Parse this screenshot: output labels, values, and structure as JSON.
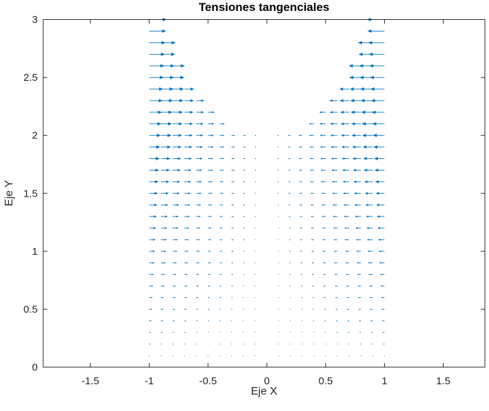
{
  "chart_data": {
    "type": "quiver",
    "title": "Tensiones tangenciales",
    "xlabel": "Eje X",
    "ylabel": "Eje Y",
    "x_tick_values": [
      -1.5,
      -1,
      -0.5,
      0,
      0.5,
      1,
      1.5
    ],
    "x_tick_labels": [
      "-1.5",
      "-1",
      "-0.5",
      "0",
      "0.5",
      "1",
      "1.5"
    ],
    "y_tick_values": [
      0,
      0.5,
      1,
      1.5,
      2,
      2.5,
      3
    ],
    "y_tick_labels": [
      "0",
      "0.5",
      "1",
      "1.5",
      "2",
      "2.5",
      "3"
    ],
    "xlim": [
      -1.901,
      1.854
    ],
    "ylim": [
      0,
      3
    ],
    "grid_x": {
      "min": -1,
      "max": 1,
      "step": 0.1
    },
    "grid_y": {
      "min": 0,
      "max": 3,
      "step": 0.1
    },
    "field": {
      "u_formula": "u = -0.05*x*y (data units; horizontal, points toward x = 0)",
      "u_coeff": -0.05,
      "v": 0
    },
    "mask": {
      "rule": "arrow plotted only where y <= offset + x^2 (parabolic notch above y = 2)",
      "offset": 2
    },
    "max_arrow_length_units": 0.15,
    "legend": "none",
    "grid_lines": "off",
    "colors": {
      "arrow": "#0072BD",
      "axis": "#262626",
      "tick_text": "#262626",
      "title_text": "#000000",
      "background": "#FFFFFF"
    }
  }
}
